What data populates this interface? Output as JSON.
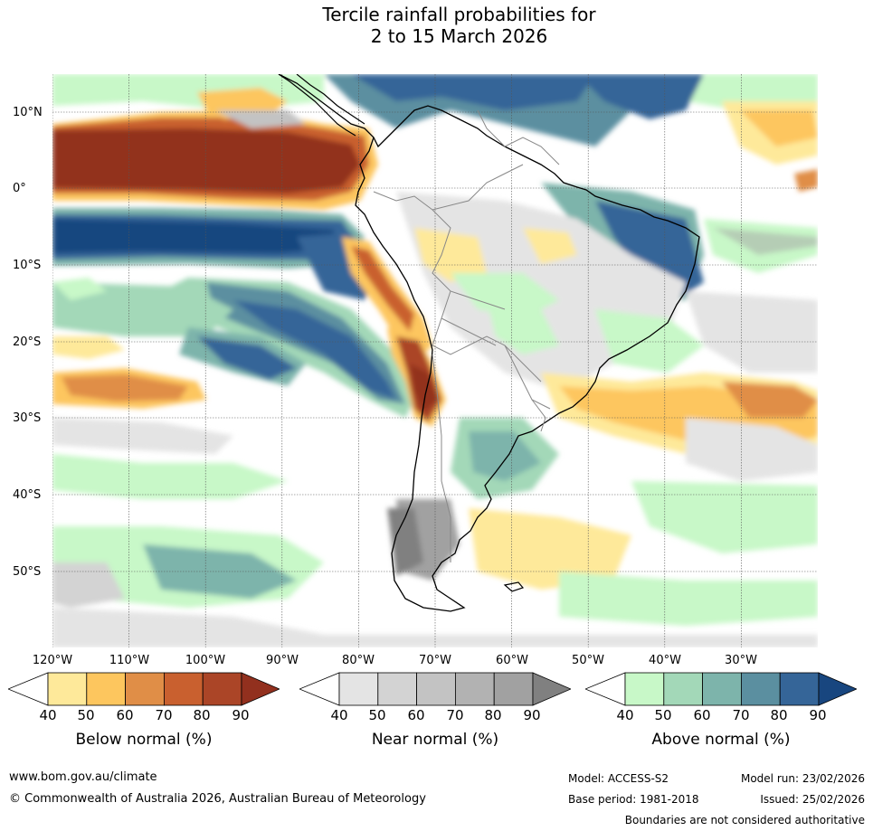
{
  "title_line1": "Tercile rainfall probabilities for",
  "title_line2": "2 to 15 March 2026",
  "lat_labels": [
    "10°N",
    "0°",
    "10°S",
    "20°S",
    "30°S",
    "40°S",
    "50°S"
  ],
  "lon_labels": [
    "120°W",
    "110°W",
    "100°W",
    "90°W",
    "80°W",
    "70°W",
    "60°W",
    "50°W",
    "40°W",
    "30°W"
  ],
  "colorbars": {
    "below": {
      "title": "Below normal (%)",
      "ticks": [
        "40",
        "50",
        "60",
        "70",
        "80",
        "90"
      ],
      "colors": [
        "#ffffff",
        "#fee99a",
        "#fdc65e",
        "#e08e47",
        "#c9602f",
        "#ab4527",
        "#92301e"
      ]
    },
    "near": {
      "title": "Near normal (%)",
      "ticks": [
        "40",
        "50",
        "60",
        "70",
        "80",
        "90"
      ],
      "colors": [
        "#ffffff",
        "#e4e4e4",
        "#d3d3d3",
        "#c3c3c3",
        "#b2b2b2",
        "#a1a1a1",
        "#808080"
      ]
    },
    "above": {
      "title": "Above normal (%)",
      "ticks": [
        "40",
        "50",
        "60",
        "70",
        "80",
        "90"
      ],
      "colors": [
        "#ffffff",
        "#c8f8c8",
        "#a3d8b8",
        "#7db4ab",
        "#5b8fa0",
        "#356598",
        "#18467f"
      ]
    }
  },
  "footer": {
    "website": "www.bom.gov.au/climate",
    "copyright": "© Commonwealth of Australia 2026, Australian Bureau of Meteorology",
    "model": "Model: ACCESS-S2",
    "base_period": "Base period: 1981-2018",
    "model_run": "Model run: 23/02/2026",
    "issued": "Issued: 25/02/2026",
    "disclaimer": "Boundaries are not considered authoritative"
  }
}
